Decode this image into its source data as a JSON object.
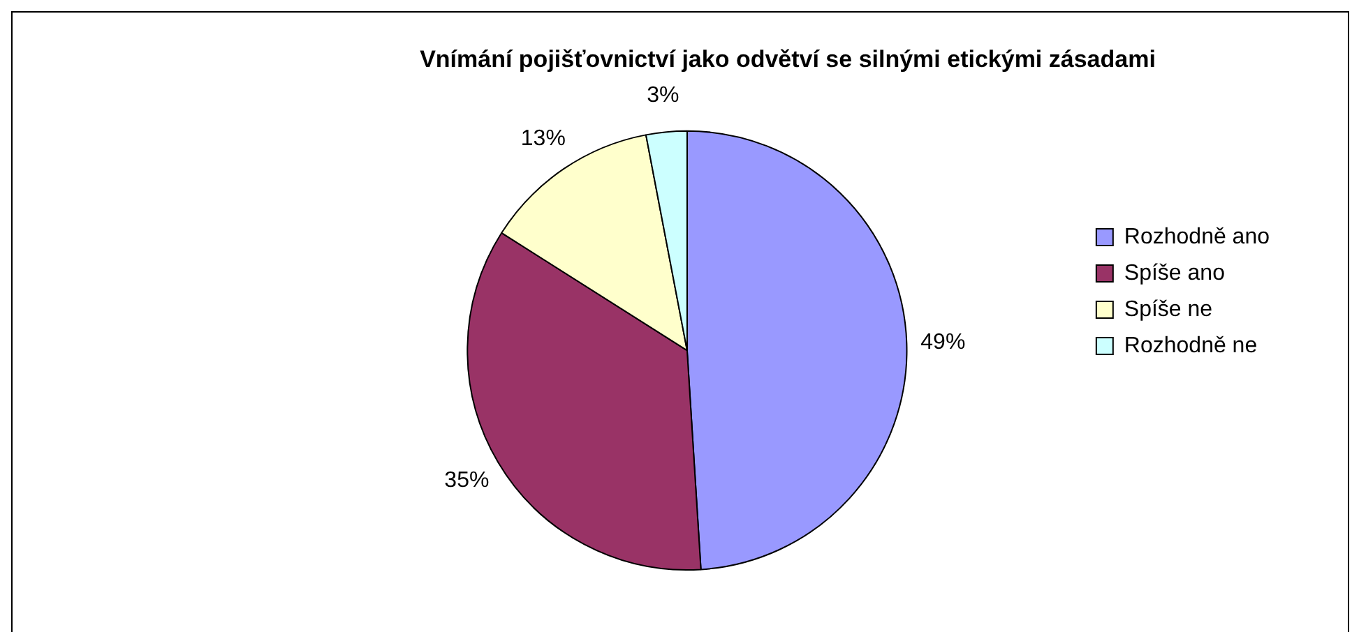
{
  "chart_data": {
    "type": "pie",
    "title": "Vnímání pojišťovnictví jako odvětví se silnými etickými zásadami",
    "categories": [
      "Rozhodně ano",
      "Spíše ano",
      "Spíše ne",
      "Rozhodně ne"
    ],
    "values": [
      49,
      35,
      13,
      3
    ],
    "colors": [
      "#9999ff",
      "#993366",
      "#ffffcc",
      "#ccffff"
    ],
    "value_labels": [
      "49%",
      "35%",
      "13%",
      "3%"
    ],
    "legend": "right"
  }
}
